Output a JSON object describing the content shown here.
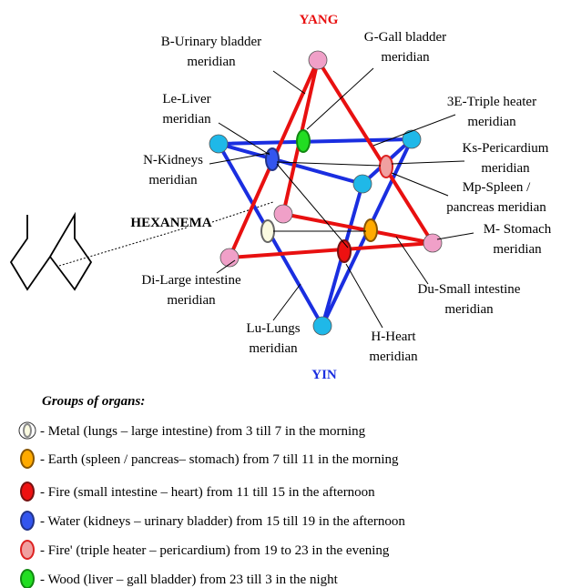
{
  "poles": {
    "yang": "YANG",
    "yin": "YIN"
  },
  "hexanema": "HEXANEMA",
  "labels": [
    {
      "lines": [
        "B-Urinary bladder",
        "meridian"
      ]
    },
    {
      "lines": [
        "G-Gall bladder",
        "meridian"
      ]
    },
    {
      "lines": [
        "3E-Triple heater",
        "meridian"
      ]
    },
    {
      "lines": [
        "Le-Liver",
        "meridian"
      ]
    },
    {
      "lines": [
        "Ks-Pericardium",
        "meridian"
      ]
    },
    {
      "lines": [
        "N-Kidneys",
        "meridian"
      ]
    },
    {
      "lines": [
        "Mp-Spleen /",
        "pancreas meridian"
      ]
    },
    {
      "lines": [
        "M- Stomach",
        "meridian"
      ]
    },
    {
      "lines": [
        "Di-Large intestine",
        "meridian"
      ]
    },
    {
      "lines": [
        "Du-Small intestine",
        "meridian"
      ]
    },
    {
      "lines": [
        "Lu-Lungs",
        "meridian"
      ]
    },
    {
      "lines": [
        "H-Heart",
        "meridian"
      ]
    }
  ],
  "legend": {
    "title": "Groups of organs:",
    "items": [
      "- Metal (lungs – large intestine) from 3 till 7 in the morning",
      "- Earth (spleen / pancreas– stomach) from 7 till 11 in the morning",
      "- Fire (small intestine – heart) from 11 till 15 in the afternoon",
      "- Water (kidneys – urinary bladder) from 15 till 19 in the afternoon",
      "- Fire' (triple heater – pericardium) from 19 to 23 in the evening",
      "- Wood (liver – gall bladder) from 23 till 3 in the night"
    ]
  }
}
